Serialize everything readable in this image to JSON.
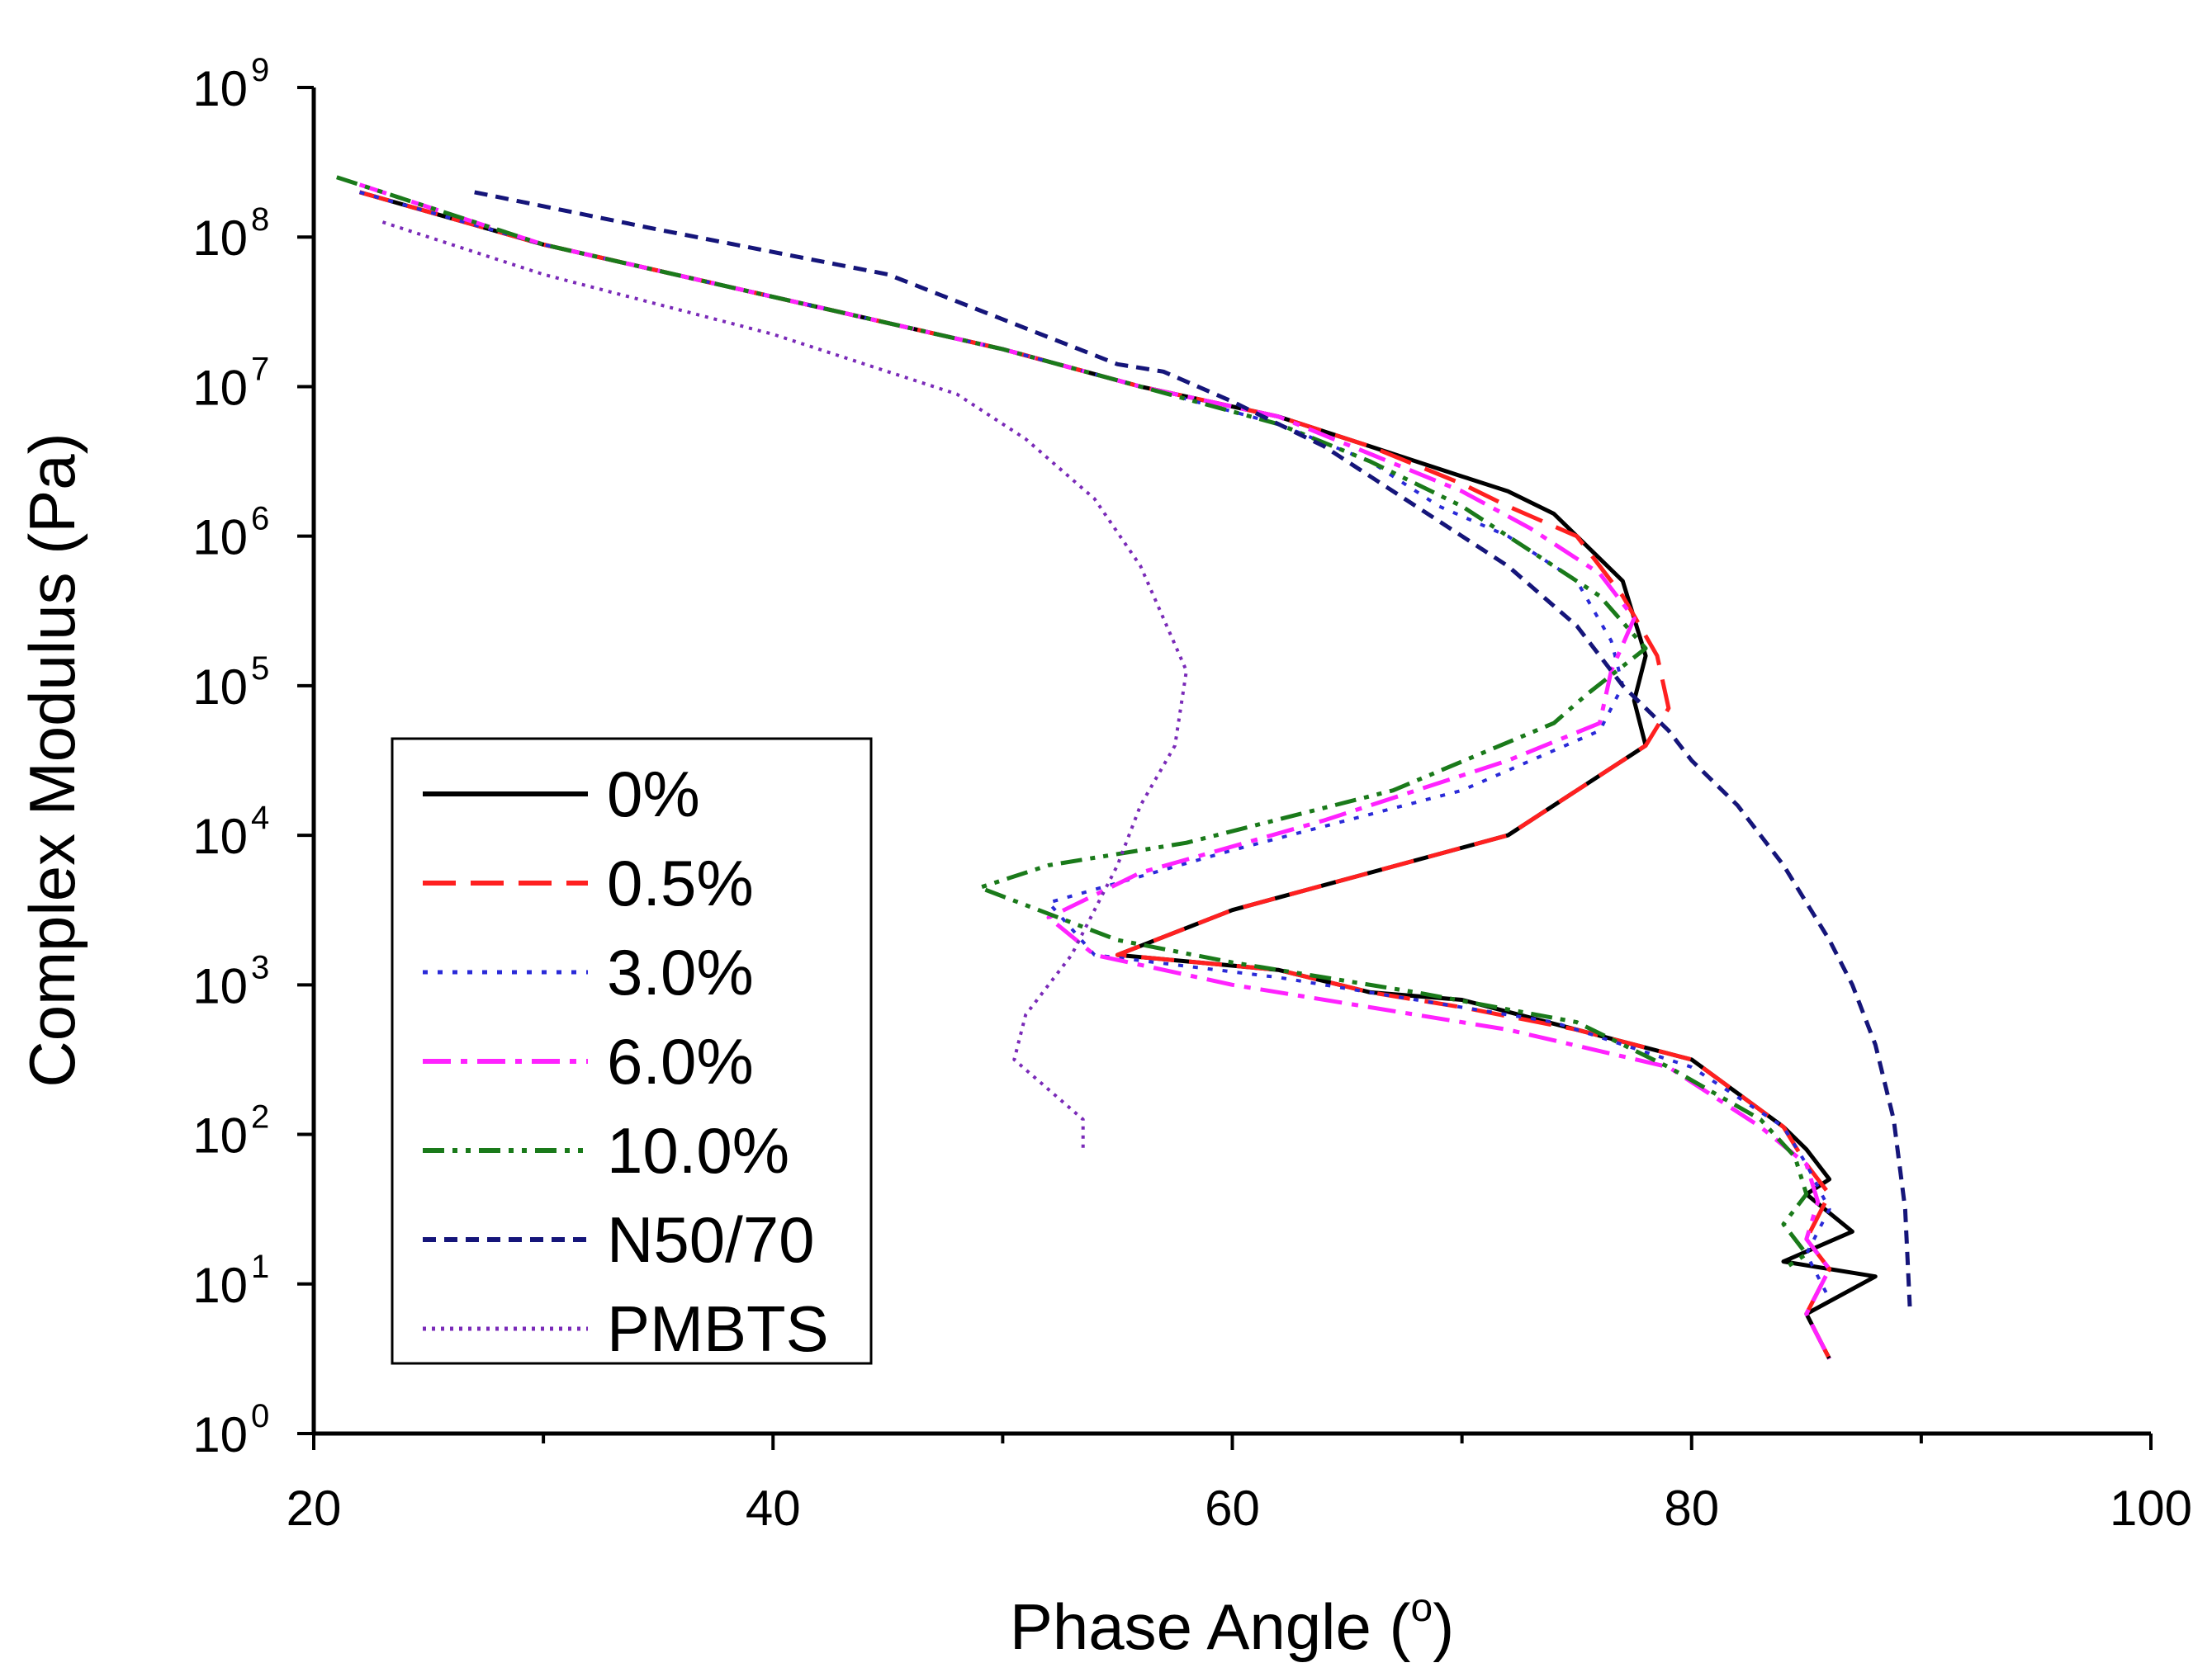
{
  "chart_data": {
    "type": "line",
    "title": "",
    "xlabel": "Phase Angle (",
    "xlabel_sup": "o",
    "xlabel_end": ")",
    "ylabel": "Complex Modulus (Pa)",
    "xlim": [
      20,
      100
    ],
    "ylim_log10": [
      0,
      9
    ],
    "y_scale": "log",
    "x_ticks": [
      "20",
      "40",
      "60",
      "80",
      "100"
    ],
    "y_ticks": [
      {
        "base": "10",
        "exp": "0"
      },
      {
        "base": "10",
        "exp": "1"
      },
      {
        "base": "10",
        "exp": "2"
      },
      {
        "base": "10",
        "exp": "3"
      },
      {
        "base": "10",
        "exp": "4"
      },
      {
        "base": "10",
        "exp": "5"
      },
      {
        "base": "10",
        "exp": "6"
      },
      {
        "base": "10",
        "exp": "7"
      },
      {
        "base": "10",
        "exp": "8"
      },
      {
        "base": "10",
        "exp": "9"
      }
    ],
    "legend_position": "lower-left",
    "series": [
      {
        "name": "0%",
        "color": "#000000",
        "dash": "solid",
        "x": [
          22,
          30,
          40,
          50,
          56,
          62,
          66,
          70,
          72,
          74,
          77,
          78,
          77.5,
          78,
          72,
          60,
          55,
          62,
          66,
          70,
          75,
          80,
          84,
          85,
          86,
          85,
          87,
          84,
          88,
          85,
          86
        ],
        "logy": [
          8.3,
          7.95,
          7.6,
          7.25,
          7.0,
          6.8,
          6.6,
          6.4,
          6.3,
          6.15,
          5.7,
          5.2,
          4.9,
          4.6,
          4.0,
          3.5,
          3.2,
          3.1,
          2.95,
          2.9,
          2.7,
          2.5,
          2.05,
          1.9,
          1.7,
          1.6,
          1.35,
          1.15,
          1.05,
          0.8,
          0.5
        ]
      },
      {
        "name": "0.5%",
        "color": "#ff2020",
        "dash": "long-dash",
        "x": [
          22,
          30,
          40,
          50,
          56,
          62,
          66,
          70,
          72,
          75,
          77,
          78.5,
          79,
          78,
          72,
          60,
          55,
          62,
          66,
          70,
          75,
          80,
          84,
          85,
          86,
          85,
          86,
          85,
          86
        ],
        "logy": [
          8.3,
          7.95,
          7.6,
          7.25,
          7.0,
          6.8,
          6.6,
          6.35,
          6.2,
          6.0,
          5.6,
          5.2,
          4.85,
          4.6,
          4.0,
          3.5,
          3.2,
          3.1,
          2.95,
          2.85,
          2.7,
          2.5,
          2.05,
          1.8,
          1.6,
          1.3,
          1.1,
          0.8,
          0.5
        ]
      },
      {
        "name": "3.0%",
        "color": "#2a2ad8",
        "dash": "dotted",
        "x": [
          22,
          30,
          40,
          50,
          56,
          62,
          66,
          69,
          72,
          75,
          76.5,
          77,
          76,
          70,
          60,
          52,
          54,
          62,
          68,
          74,
          80,
          84,
          85,
          86,
          85,
          86
        ],
        "logy": [
          8.3,
          7.95,
          7.6,
          7.25,
          7.0,
          6.75,
          6.5,
          6.2,
          6.0,
          5.7,
          5.3,
          5.0,
          4.7,
          4.3,
          3.9,
          3.55,
          3.2,
          3.05,
          2.9,
          2.75,
          2.45,
          2.05,
          1.8,
          1.5,
          1.2,
          0.9
        ]
      },
      {
        "name": "6.0%",
        "color": "#ff22ff",
        "dash": "dash-dot",
        "x": [
          22,
          30,
          40,
          50,
          56,
          62,
          66,
          70,
          73,
          76,
          77.5,
          76.5,
          76,
          72,
          64,
          56,
          52,
          54,
          60,
          66,
          72,
          79,
          83,
          85,
          85.5,
          85,
          86,
          85,
          86
        ],
        "logy": [
          8.35,
          7.95,
          7.6,
          7.25,
          7.0,
          6.8,
          6.55,
          6.3,
          6.05,
          5.75,
          5.45,
          5.1,
          4.75,
          4.5,
          4.1,
          3.75,
          3.45,
          3.2,
          3.0,
          2.85,
          2.7,
          2.45,
          2.05,
          1.8,
          1.55,
          1.3,
          1.1,
          0.8,
          0.5
        ]
      },
      {
        "name": "10.0%",
        "color": "#1a7a1a",
        "dash": "dash-dot-dot",
        "x": [
          21,
          30,
          40,
          50,
          56,
          62,
          66,
          70,
          73,
          76,
          78,
          75.5,
          74,
          67,
          58,
          52,
          49,
          55,
          60,
          68,
          75,
          79,
          83,
          84.5,
          85,
          84,
          85,
          84
        ],
        "logy": [
          8.4,
          7.95,
          7.6,
          7.25,
          7.0,
          6.75,
          6.5,
          6.2,
          5.9,
          5.6,
          5.25,
          4.95,
          4.75,
          4.3,
          3.95,
          3.8,
          3.65,
          3.3,
          3.15,
          2.95,
          2.75,
          2.45,
          2.1,
          1.85,
          1.6,
          1.4,
          1.2,
          1.1
        ]
      },
      {
        "name": "N50/70",
        "color": "#15157a",
        "dash": "short-dash",
        "x": [
          27,
          35,
          45,
          55,
          57,
          60,
          64,
          68,
          72,
          75,
          77,
          79,
          80,
          82,
          84,
          86,
          87,
          88,
          88.8,
          89.3,
          89.5
        ],
        "logy": [
          8.3,
          8.05,
          7.75,
          7.15,
          7.1,
          6.9,
          6.6,
          6.2,
          5.8,
          5.4,
          5.0,
          4.7,
          4.5,
          4.2,
          3.8,
          3.3,
          3.0,
          2.6,
          2.1,
          1.5,
          0.85
        ]
      },
      {
        "name": "PMBTS",
        "color": "#7a2ab8",
        "dash": "fine-dot",
        "x": [
          23,
          30,
          35,
          40,
          44,
          48,
          51,
          54,
          56,
          57,
          58,
          57.5,
          56,
          55,
          54,
          53,
          52,
          51,
          50.5,
          52,
          53.5,
          53.5
        ],
        "logy": [
          8.1,
          7.75,
          7.55,
          7.35,
          7.15,
          6.95,
          6.65,
          6.25,
          5.8,
          5.45,
          5.1,
          4.6,
          4.2,
          3.8,
          3.5,
          3.2,
          3.0,
          2.8,
          2.5,
          2.3,
          2.1,
          1.9
        ]
      }
    ]
  }
}
